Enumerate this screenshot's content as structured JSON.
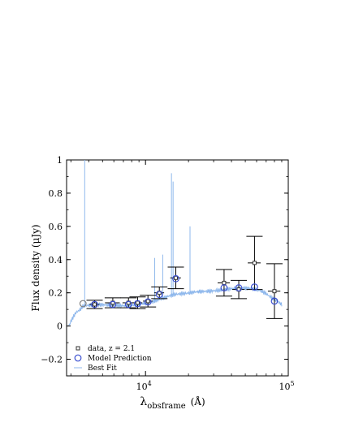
{
  "chart_data": {
    "type": "scatter",
    "title": "",
    "xlabel": {
      "base": "λ",
      "subscript": "obsframe",
      "unit": "(Å)"
    },
    "ylabel": "Flux density (μJy)",
    "x_scale": "log",
    "xlim": [
      2800,
      100000
    ],
    "ylim": [
      -0.3,
      1.0
    ],
    "x_ticks": [
      {
        "value": 10000,
        "base": "10",
        "exp": "4"
      },
      {
        "value": 100000,
        "base": "10",
        "exp": "5"
      }
    ],
    "y_ticks": [
      {
        "value": -0.2,
        "label": "−0.2"
      },
      {
        "value": 0,
        "label": "0"
      },
      {
        "value": 0.2,
        "label": "0.2"
      },
      {
        "value": 0.4,
        "label": "0.4"
      },
      {
        "value": 0.6,
        "label": "0.6"
      },
      {
        "value": 0.8,
        "label": "0.8"
      },
      {
        "value": 1.0,
        "label": "1"
      }
    ],
    "grid": false,
    "legend_position": "bottom-left",
    "legend": [
      {
        "marker": "square",
        "label": "data, z = 2.1"
      },
      {
        "marker": "circle",
        "label": "Model Prediction"
      },
      {
        "marker": "line",
        "label": "Best Fit"
      }
    ],
    "colors": {
      "data": "#000000",
      "model": "#3a4fd0",
      "best_fit": "#8fb8ec",
      "upper_limit": "#808080"
    },
    "series": [
      {
        "name": "data, z = 2.1",
        "marker": "square",
        "points": [
          {
            "x": 4400,
            "y": 0.13,
            "yerr": 0.025,
            "xerr": 350
          },
          {
            "x": 5900,
            "y": 0.14,
            "yerr": 0.03,
            "xerr": 700
          },
          {
            "x": 7600,
            "y": 0.14,
            "yerr": 0.03,
            "xerr": 700
          },
          {
            "x": 8800,
            "y": 0.14,
            "yerr": 0.035,
            "xerr": 700
          },
          {
            "x": 10400,
            "y": 0.15,
            "yerr": 0.035,
            "xerr": 800
          },
          {
            "x": 12500,
            "y": 0.2,
            "yerr": 0.035,
            "xerr": 1000
          },
          {
            "x": 16300,
            "y": 0.29,
            "yerr": 0.065,
            "xerr": 1400
          },
          {
            "x": 35500,
            "y": 0.26,
            "yerr": 0.08,
            "xerr": 3500
          },
          {
            "x": 45000,
            "y": 0.22,
            "yerr": 0.055,
            "xerr": 4500
          },
          {
            "x": 58000,
            "y": 0.38,
            "yerr": 0.16,
            "xerr": 6000
          },
          {
            "x": 80000,
            "y": 0.21,
            "yerr": 0.165,
            "xerr": 8000
          }
        ]
      },
      {
        "name": "Model Prediction",
        "marker": "circle",
        "points": [
          {
            "x": 3650,
            "y": 0.135,
            "upper_limit": true
          },
          {
            "x": 4400,
            "y": 0.13
          },
          {
            "x": 5900,
            "y": 0.13
          },
          {
            "x": 7600,
            "y": 0.13
          },
          {
            "x": 8800,
            "y": 0.135
          },
          {
            "x": 10400,
            "y": 0.145
          },
          {
            "x": 12500,
            "y": 0.19
          },
          {
            "x": 16300,
            "y": 0.285
          },
          {
            "x": 35500,
            "y": 0.23
          },
          {
            "x": 45000,
            "y": 0.23
          },
          {
            "x": 58000,
            "y": 0.235
          },
          {
            "x": 80000,
            "y": 0.15
          }
        ]
      },
      {
        "name": "Best Fit",
        "type": "line",
        "continuum": [
          [
            2900,
            0.0
          ],
          [
            3050,
            0.04
          ],
          [
            3250,
            0.08
          ],
          [
            3500,
            0.1
          ],
          [
            3650,
            0.12
          ],
          [
            4000,
            0.125
          ],
          [
            4500,
            0.13
          ],
          [
            5000,
            0.128
          ],
          [
            6000,
            0.125
          ],
          [
            7000,
            0.122
          ],
          [
            8000,
            0.125
          ],
          [
            9000,
            0.13
          ],
          [
            10000,
            0.138
          ],
          [
            11000,
            0.145
          ],
          [
            12000,
            0.155
          ],
          [
            13000,
            0.165
          ],
          [
            14500,
            0.18
          ],
          [
            16000,
            0.19
          ],
          [
            18000,
            0.195
          ],
          [
            20000,
            0.198
          ],
          [
            22000,
            0.205
          ],
          [
            25000,
            0.208
          ],
          [
            28000,
            0.21
          ],
          [
            30000,
            0.212
          ],
          [
            33000,
            0.215
          ],
          [
            36000,
            0.22
          ],
          [
            40000,
            0.225
          ],
          [
            45000,
            0.228
          ],
          [
            50000,
            0.228
          ],
          [
            55000,
            0.226
          ],
          [
            60000,
            0.22
          ],
          [
            65000,
            0.21
          ],
          [
            70000,
            0.195
          ],
          [
            75000,
            0.175
          ],
          [
            80000,
            0.16
          ],
          [
            85000,
            0.145
          ],
          [
            90000,
            0.13
          ]
        ],
        "lines": [
          {
            "x": 3750,
            "peak": 1.0
          },
          {
            "x": 11600,
            "peak": 0.41
          },
          {
            "x": 13200,
            "peak": 0.43
          },
          {
            "x": 15200,
            "peak": 0.92
          },
          {
            "x": 15600,
            "peak": 0.87
          },
          {
            "x": 20500,
            "peak": 0.6
          }
        ]
      }
    ]
  }
}
